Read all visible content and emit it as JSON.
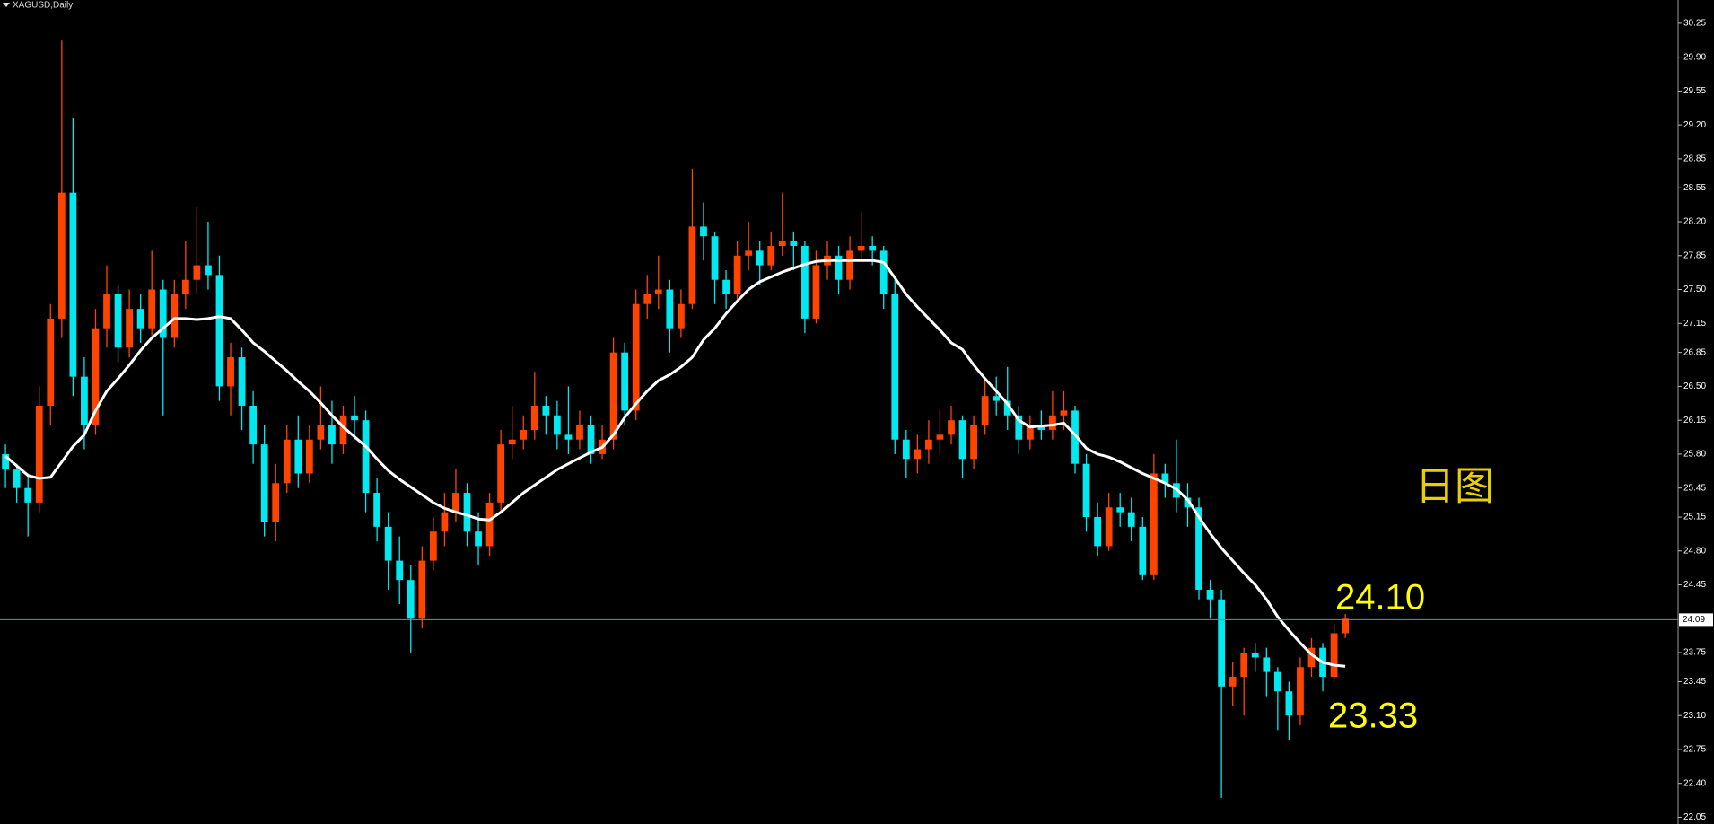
{
  "chart_data": {
    "type": "candlestick",
    "title": "XAGUSD,Daily",
    "up_color": "#ff4400",
    "down_color": "#00e8f0",
    "open": [
      25.8,
      25.64,
      25.45,
      25.3,
      26.3,
      27.2,
      28.5,
      26.6,
      26.1,
      27.1,
      27.45,
      26.9,
      27.3,
      27.1,
      27.5,
      27.0,
      27.45,
      27.6,
      27.75,
      27.65,
      26.5,
      26.8,
      26.3,
      25.9,
      25.1,
      25.5,
      25.95,
      25.6,
      25.95,
      26.1,
      25.9,
      26.2,
      26.15,
      25.4,
      25.05,
      24.7,
      24.5,
      24.1,
      24.7,
      25.0,
      25.2,
      25.4,
      25.0,
      24.85,
      25.3,
      25.9,
      25.95,
      26.05,
      26.3,
      26.2,
      26.0,
      25.95,
      26.1,
      25.8,
      25.95,
      26.85,
      26.25,
      27.35,
      27.45,
      27.5,
      27.1,
      27.35,
      28.15,
      28.05,
      27.6,
      27.45,
      27.85,
      27.9,
      27.75,
      27.95,
      28.0,
      27.95,
      27.2,
      27.75,
      27.85,
      27.6,
      27.9,
      27.95,
      27.9,
      27.45,
      25.95,
      25.75,
      25.85,
      25.95,
      26.0,
      26.15,
      25.75,
      26.1,
      26.4,
      26.35,
      26.2,
      25.95,
      26.1,
      26.05,
      26.2,
      26.25,
      25.7,
      25.15,
      24.85,
      25.25,
      25.2,
      25.05,
      24.55,
      25.6,
      25.5,
      25.35,
      25.25,
      24.4,
      24.3,
      23.4,
      23.5,
      23.75,
      23.7,
      23.55,
      23.35,
      23.1,
      23.6,
      23.8,
      23.5,
      23.95
    ],
    "high": [
      25.9,
      25.7,
      25.6,
      26.5,
      27.35,
      30.07,
      29.27,
      26.8,
      27.3,
      27.75,
      27.55,
      27.5,
      27.45,
      27.9,
      27.6,
      27.6,
      28.0,
      28.35,
      28.2,
      27.85,
      26.95,
      26.9,
      26.45,
      26.1,
      25.7,
      26.1,
      26.2,
      26.1,
      26.5,
      26.35,
      26.3,
      26.4,
      26.25,
      25.55,
      25.2,
      24.95,
      24.65,
      24.85,
      25.15,
      25.4,
      25.65,
      25.5,
      25.2,
      25.4,
      26.05,
      26.3,
      26.2,
      26.65,
      26.4,
      26.35,
      26.5,
      26.25,
      26.2,
      26.1,
      27.0,
      26.95,
      27.5,
      27.65,
      27.85,
      27.6,
      27.5,
      28.75,
      28.4,
      28.1,
      27.7,
      28.0,
      28.2,
      28.0,
      28.1,
      28.5,
      28.1,
      28.0,
      27.9,
      28.0,
      27.95,
      28.05,
      28.3,
      28.05,
      27.95,
      27.6,
      26.05,
      26.0,
      26.15,
      26.25,
      26.3,
      26.2,
      26.2,
      26.55,
      26.6,
      26.7,
      26.3,
      26.2,
      26.25,
      26.45,
      26.45,
      26.3,
      25.8,
      25.3,
      25.4,
      25.4,
      25.35,
      25.15,
      25.8,
      25.7,
      25.95,
      25.5,
      25.35,
      24.5,
      24.4,
      23.65,
      23.8,
      23.85,
      23.8,
      23.6,
      23.45,
      23.7,
      23.9,
      23.85,
      24.05,
      24.15
    ],
    "low": [
      25.45,
      25.3,
      24.95,
      25.2,
      26.1,
      27.0,
      26.4,
      25.85,
      26.0,
      26.9,
      26.75,
      26.8,
      26.95,
      27.0,
      26.2,
      26.9,
      27.3,
      27.45,
      27.5,
      26.35,
      26.2,
      26.05,
      25.7,
      24.95,
      24.9,
      25.4,
      25.45,
      25.5,
      25.85,
      25.7,
      25.8,
      25.95,
      25.2,
      24.9,
      24.4,
      24.25,
      23.75,
      24.0,
      24.6,
      24.85,
      25.1,
      24.85,
      24.65,
      24.75,
      25.2,
      25.75,
      25.85,
      25.95,
      26.0,
      25.85,
      25.8,
      25.85,
      25.7,
      25.75,
      25.85,
      26.1,
      26.15,
      27.2,
      27.3,
      26.85,
      27.0,
      27.3,
      27.8,
      27.35,
      27.3,
      27.4,
      27.7,
      27.55,
      27.7,
      27.85,
      27.7,
      27.05,
      27.15,
      27.6,
      27.45,
      27.5,
      27.8,
      27.75,
      27.3,
      25.8,
      25.55,
      25.6,
      25.7,
      25.8,
      25.9,
      25.55,
      25.65,
      26.0,
      26.2,
      26.05,
      25.8,
      25.85,
      25.95,
      25.95,
      26.05,
      25.6,
      25.0,
      24.75,
      24.8,
      25.05,
      24.9,
      24.5,
      24.5,
      25.35,
      25.2,
      25.05,
      24.3,
      24.1,
      22.25,
      23.2,
      23.1,
      23.55,
      23.3,
      22.95,
      22.85,
      23.0,
      23.5,
      23.35,
      23.45,
      23.9
    ],
    "close": [
      25.64,
      25.45,
      25.3,
      26.3,
      27.2,
      28.5,
      26.6,
      26.1,
      27.1,
      27.45,
      26.9,
      27.3,
      27.1,
      27.5,
      27.0,
      27.45,
      27.6,
      27.75,
      27.65,
      26.5,
      26.8,
      26.3,
      25.9,
      25.1,
      25.5,
      25.95,
      25.6,
      25.95,
      26.1,
      25.9,
      26.2,
      26.15,
      25.4,
      25.05,
      24.7,
      24.5,
      24.1,
      24.7,
      25.0,
      25.2,
      25.4,
      25.0,
      24.85,
      25.3,
      25.9,
      25.95,
      26.05,
      26.3,
      26.2,
      26.0,
      25.95,
      26.1,
      25.8,
      25.95,
      26.85,
      26.25,
      27.35,
      27.45,
      27.5,
      27.1,
      27.35,
      28.15,
      28.05,
      27.6,
      27.45,
      27.85,
      27.9,
      27.75,
      27.95,
      28.0,
      27.95,
      27.2,
      27.75,
      27.85,
      27.6,
      27.9,
      27.95,
      27.9,
      27.45,
      25.95,
      25.75,
      25.85,
      25.95,
      26.0,
      26.15,
      25.75,
      26.1,
      26.4,
      26.35,
      26.2,
      25.95,
      26.1,
      26.05,
      26.2,
      26.25,
      25.7,
      25.15,
      24.85,
      25.25,
      25.2,
      25.05,
      24.55,
      25.6,
      25.5,
      25.35,
      25.25,
      24.4,
      24.3,
      23.4,
      23.5,
      23.75,
      23.7,
      23.55,
      23.35,
      23.1,
      23.6,
      23.8,
      23.5,
      23.95,
      24.1
    ],
    "ma": {
      "color": "#ffffff",
      "values": [
        25.78,
        25.68,
        25.58,
        25.55,
        25.56,
        25.72,
        25.88,
        26.0,
        26.25,
        26.45,
        26.58,
        26.72,
        26.87,
        27.0,
        27.1,
        27.2,
        27.2,
        27.19,
        27.2,
        27.22,
        27.2,
        27.08,
        26.95,
        26.86,
        26.76,
        26.66,
        26.55,
        26.45,
        26.33,
        26.2,
        26.08,
        25.98,
        25.88,
        25.75,
        25.63,
        25.54,
        25.46,
        25.38,
        25.3,
        25.24,
        25.2,
        25.17,
        25.13,
        25.12,
        25.2,
        25.3,
        25.4,
        25.48,
        25.56,
        25.64,
        25.7,
        25.76,
        25.82,
        25.87,
        26.0,
        26.18,
        26.32,
        26.45,
        26.56,
        26.62,
        26.7,
        26.8,
        26.98,
        27.1,
        27.25,
        27.38,
        27.5,
        27.58,
        27.63,
        27.68,
        27.72,
        27.76,
        27.79,
        27.8,
        27.8,
        27.8,
        27.8,
        27.8,
        27.78,
        27.62,
        27.45,
        27.32,
        27.2,
        27.08,
        26.95,
        26.88,
        26.72,
        26.58,
        26.45,
        26.32,
        26.15,
        26.08,
        26.09,
        26.1,
        26.12,
        26.0,
        25.86,
        25.8,
        25.77,
        25.72,
        25.66,
        25.6,
        25.55,
        25.5,
        25.44,
        25.33,
        25.15,
        24.98,
        24.83,
        24.7,
        24.57,
        24.45,
        24.3,
        24.12,
        23.98,
        23.85,
        23.73,
        23.65,
        23.62,
        23.61
      ]
    },
    "current_price": 24.09,
    "current_line_color": "#7888a8",
    "ylim": [
      21.98,
      30.49
    ],
    "yticks": [
      {
        "value": 30.25,
        "label": "30.25"
      },
      {
        "value": 29.9,
        "label": "29.90"
      },
      {
        "value": 29.55,
        "label": "29.55"
      },
      {
        "value": 29.2,
        "label": "29.20"
      },
      {
        "value": 28.85,
        "label": "28.85"
      },
      {
        "value": 28.55,
        "label": "28.55"
      },
      {
        "value": 28.2,
        "label": "28.20"
      },
      {
        "value": 27.85,
        "label": "27.85"
      },
      {
        "value": 27.5,
        "label": "27.50"
      },
      {
        "value": 27.15,
        "label": "27.15"
      },
      {
        "value": 26.85,
        "label": "26.85"
      },
      {
        "value": 26.5,
        "label": "26.50"
      },
      {
        "value": 26.15,
        "label": "26.15"
      },
      {
        "value": 25.8,
        "label": "25.80"
      },
      {
        "value": 25.45,
        "label": "25.45"
      },
      {
        "value": 25.15,
        "label": "25.15"
      },
      {
        "value": 24.8,
        "label": "24.80"
      },
      {
        "value": 24.45,
        "label": "24.45"
      },
      {
        "value": 23.75,
        "label": "23.75"
      },
      {
        "value": 23.45,
        "label": "23.45"
      },
      {
        "value": 23.1,
        "label": "23.10"
      },
      {
        "value": 22.75,
        "label": "22.75"
      },
      {
        "value": 22.4,
        "label": "22.40"
      },
      {
        "value": 22.05,
        "label": "22.05"
      }
    ],
    "annotations": [
      "日图",
      "24.10",
      "23.33"
    ]
  }
}
